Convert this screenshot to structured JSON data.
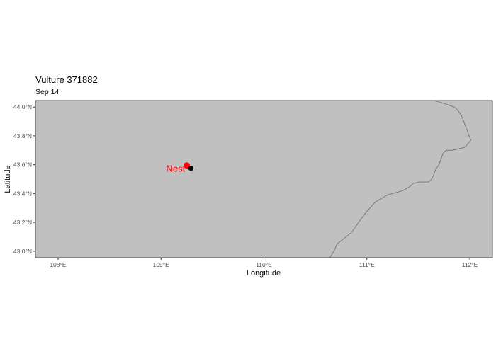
{
  "chart_data": {
    "type": "scatter",
    "title": "Vulture 371882",
    "subtitle": "Sep 14",
    "xlabel": "Longitude",
    "ylabel": "Latitude",
    "xlim": [
      107.78,
      112.22
    ],
    "ylim": [
      42.955,
      44.045
    ],
    "x_ticks": [
      {
        "value": 108,
        "label": "108°E"
      },
      {
        "value": 109,
        "label": "109°E"
      },
      {
        "value": 110,
        "label": "110°E"
      },
      {
        "value": 111,
        "label": "111°E"
      },
      {
        "value": 112,
        "label": "112°E"
      }
    ],
    "y_ticks": [
      {
        "value": 43.0,
        "label": "43.0°N"
      },
      {
        "value": 43.2,
        "label": "43.2°N"
      },
      {
        "value": 43.4,
        "label": "43.4°N"
      },
      {
        "value": 43.6,
        "label": "43.6°N"
      },
      {
        "value": 43.8,
        "label": "43.8°N"
      },
      {
        "value": 44.0,
        "label": "44.0°N"
      }
    ],
    "grid": false,
    "background_color": "#c0c0c0",
    "border_color": "#4d4d4d",
    "boundary_color": "#7f7f7f",
    "boundary": [
      [
        110.64,
        42.955
      ],
      [
        110.68,
        43.0
      ],
      [
        110.71,
        43.05
      ],
      [
        110.85,
        43.13
      ],
      [
        110.97,
        43.25
      ],
      [
        111.03,
        43.3
      ],
      [
        111.08,
        43.34
      ],
      [
        111.2,
        43.39
      ],
      [
        111.35,
        43.42
      ],
      [
        111.42,
        43.45
      ],
      [
        111.45,
        43.47
      ],
      [
        111.51,
        43.48
      ],
      [
        111.6,
        43.48
      ],
      [
        111.63,
        43.5
      ],
      [
        111.65,
        43.53
      ],
      [
        111.67,
        43.57
      ],
      [
        111.7,
        43.6
      ],
      [
        111.74,
        43.68
      ],
      [
        111.77,
        43.7
      ],
      [
        111.83,
        43.7
      ],
      [
        111.95,
        43.72
      ],
      [
        112.01,
        43.77
      ],
      [
        111.92,
        43.94
      ],
      [
        111.88,
        43.98
      ],
      [
        111.85,
        44.0
      ],
      [
        111.77,
        44.02
      ],
      [
        111.68,
        44.04
      ],
      [
        111.66,
        44.045
      ]
    ],
    "points": [
      {
        "name": "nest",
        "lon": 109.25,
        "lat": 43.595,
        "color": "#ff0000",
        "radius": 4.5
      },
      {
        "name": "location",
        "lon": 109.29,
        "lat": 43.575,
        "color": "#000000",
        "radius": 3.6
      }
    ],
    "annotations": [
      {
        "text": "Nest",
        "lon": 109.22,
        "lat": 43.575,
        "color": "#ff0000"
      }
    ]
  }
}
